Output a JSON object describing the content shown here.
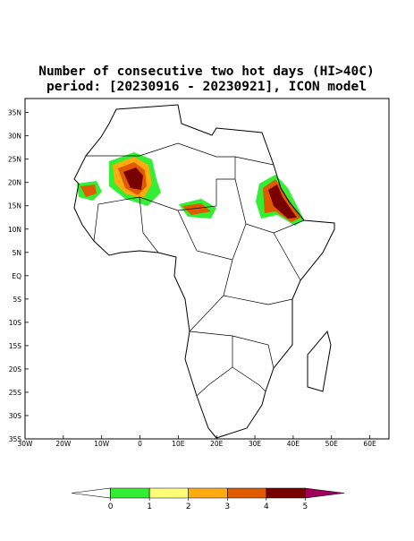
{
  "title": "Number of consecutive two hot days (HI>40C)",
  "subtitle": "period: [20230916 - 20230921], ICON model",
  "map": {
    "xlim": [
      -30,
      65
    ],
    "ylim": [
      -35,
      38
    ],
    "xticks": [
      {
        "value": -30,
        "label": "30W"
      },
      {
        "value": -20,
        "label": "20W"
      },
      {
        "value": -10,
        "label": "10W"
      },
      {
        "value": 0,
        "label": "0"
      },
      {
        "value": 10,
        "label": "10E"
      },
      {
        "value": 20,
        "label": "20E"
      },
      {
        "value": 30,
        "label": "30E"
      },
      {
        "value": 40,
        "label": "40E"
      },
      {
        "value": 50,
        "label": "50E"
      },
      {
        "value": 60,
        "label": "60E"
      }
    ],
    "yticks": [
      {
        "value": 35,
        "label": "35N"
      },
      {
        "value": 30,
        "label": "30N"
      },
      {
        "value": 25,
        "label": "25N"
      },
      {
        "value": 20,
        "label": "20N"
      },
      {
        "value": 15,
        "label": "15N"
      },
      {
        "value": 10,
        "label": "10N"
      },
      {
        "value": 5,
        "label": "5N"
      },
      {
        "value": 0,
        "label": "EQ"
      },
      {
        "value": -5,
        "label": "5S"
      },
      {
        "value": -10,
        "label": "10S"
      },
      {
        "value": -15,
        "label": "15S"
      },
      {
        "value": -20,
        "label": "20S"
      },
      {
        "value": -25,
        "label": "25S"
      },
      {
        "value": -30,
        "label": "30S"
      },
      {
        "value": -35,
        "label": "35S"
      }
    ]
  },
  "colorbar": {
    "colors": [
      "#ffffff",
      "#33ee33",
      "#ffff77",
      "#ffaa11",
      "#e05a00",
      "#780000",
      "#a0005a"
    ],
    "ticks": [
      0,
      1,
      2,
      3,
      4,
      5
    ]
  }
}
